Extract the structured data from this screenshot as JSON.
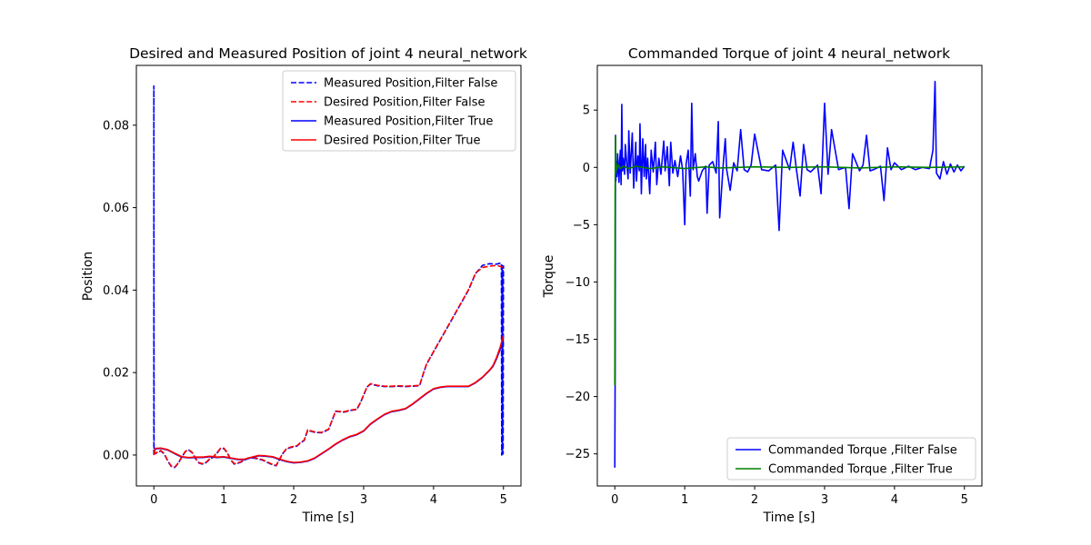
{
  "chart_data": [
    {
      "type": "line",
      "title": "Desired and Measured Position of joint 4 neural_network",
      "xlabel": "Time [s]",
      "ylabel": "Position",
      "xlim": [
        -0.25,
        5.25
      ],
      "ylim": [
        -0.0075,
        0.0945
      ],
      "xticks": [
        0,
        1,
        2,
        3,
        4,
        5
      ],
      "xtick_labels": [
        "0",
        "1",
        "2",
        "3",
        "4",
        "5"
      ],
      "yticks": [
        0.0,
        0.02,
        0.04,
        0.06,
        0.08
      ],
      "ytick_labels": [
        "0.00",
        "0.02",
        "0.04",
        "0.06",
        "0.08"
      ],
      "grid": false,
      "legend_position": "upper right",
      "series": [
        {
          "name": "Measured Position,Filter False",
          "color": "#0000ff",
          "dash": "dashed",
          "x": [
            0,
            0,
            0.003,
            0.006,
            0.04,
            0.1,
            0.15,
            0.2,
            0.25,
            0.3,
            0.35,
            0.4,
            0.45,
            0.5,
            0.55,
            0.6,
            0.65,
            0.7,
            0.75,
            0.8,
            0.85,
            0.9,
            0.95,
            1.0,
            1.05,
            1.1,
            1.15,
            1.2,
            1.25,
            1.3,
            1.35,
            1.4,
            1.45,
            1.5,
            1.55,
            1.6,
            1.65,
            1.7,
            1.75,
            1.8,
            1.85,
            1.9,
            1.95,
            2.0,
            2.05,
            2.1,
            2.15,
            2.2,
            2.3,
            2.4,
            2.5,
            2.6,
            2.7,
            2.75,
            2.8,
            2.9,
            2.95,
            3.0,
            3.05,
            3.1,
            3.2,
            3.3,
            3.4,
            3.5,
            3.6,
            3.7,
            3.8,
            3.85,
            3.9,
            4.0,
            4.1,
            4.2,
            4.3,
            4.4,
            4.5,
            4.55,
            4.6,
            4.7,
            4.8,
            4.9,
            4.97,
            4.975,
            4.98,
            4.985,
            4.99,
            4.995,
            5.0
          ],
          "y": [
            0.0,
            0.0895,
            0.0006,
            0.0003,
            0.0005,
            0.001,
            0.0002,
            -0.0015,
            -0.0028,
            -0.003,
            -0.002,
            -0.0005,
            0.0008,
            0.0012,
            0.0005,
            -0.001,
            -0.002,
            -0.0022,
            -0.0018,
            -0.001,
            -0.0005,
            0.0004,
            0.0015,
            0.0016,
            0.0005,
            -0.0012,
            -0.0022,
            -0.002,
            -0.0017,
            -0.0012,
            -0.0008,
            -0.0007,
            -0.0008,
            -0.001,
            -0.0012,
            -0.0016,
            -0.002,
            -0.0024,
            -0.0026,
            -0.001,
            0.0005,
            0.0015,
            0.0018,
            0.002,
            0.0022,
            0.003,
            0.0035,
            0.006,
            0.0055,
            0.0054,
            0.0062,
            0.0106,
            0.0104,
            0.0105,
            0.0108,
            0.011,
            0.0125,
            0.0145,
            0.0165,
            0.0172,
            0.0168,
            0.0166,
            0.0166,
            0.0167,
            0.0166,
            0.0167,
            0.0168,
            0.0195,
            0.022,
            0.025,
            0.028,
            0.031,
            0.034,
            0.037,
            0.04,
            0.042,
            0.044,
            0.046,
            0.0464,
            0.0463,
            0.0466,
            0.0,
            0.046,
            0.0,
            0.045,
            0.0003,
            0.046
          ]
        },
        {
          "name": "Desired Position,Filter False",
          "color": "#ff0000",
          "dash": "dashed",
          "x": [
            0,
            0.003,
            0.006,
            0.04,
            0.1,
            0.15,
            0.2,
            0.25,
            0.3,
            0.35,
            0.4,
            0.45,
            0.5,
            0.55,
            0.6,
            0.65,
            0.7,
            0.75,
            0.8,
            0.85,
            0.9,
            0.95,
            1.0,
            1.05,
            1.1,
            1.15,
            1.2,
            1.25,
            1.3,
            1.35,
            1.4,
            1.45,
            1.5,
            1.55,
            1.6,
            1.65,
            1.7,
            1.75,
            1.8,
            1.85,
            1.9,
            1.95,
            2.0,
            2.05,
            2.1,
            2.15,
            2.2,
            2.3,
            2.4,
            2.5,
            2.6,
            2.7,
            2.75,
            2.8,
            2.9,
            2.95,
            3.0,
            3.05,
            3.1,
            3.2,
            3.3,
            3.4,
            3.5,
            3.6,
            3.7,
            3.8,
            3.85,
            3.9,
            4.0,
            4.1,
            4.2,
            4.3,
            4.4,
            4.5,
            4.55,
            4.6,
            4.7,
            4.8,
            4.9,
            5.0
          ],
          "y": [
            0.0,
            0.0003,
            0.0004,
            0.0006,
            0.0011,
            0.0003,
            -0.0014,
            -0.0027,
            -0.0029,
            -0.0019,
            -0.0004,
            0.0009,
            0.0013,
            0.0006,
            -0.0009,
            -0.0019,
            -0.0021,
            -0.0017,
            -0.0009,
            -0.0004,
            0.0005,
            0.0016,
            0.0017,
            0.0006,
            -0.0011,
            -0.0021,
            -0.0019,
            -0.0016,
            -0.0011,
            -0.0007,
            -0.0006,
            -0.0007,
            -0.0009,
            -0.0011,
            -0.0015,
            -0.0019,
            -0.0023,
            -0.0025,
            -0.0009,
            0.0006,
            0.0016,
            0.0019,
            0.0021,
            0.0023,
            0.0031,
            0.0036,
            0.0061,
            0.0056,
            0.0055,
            0.0063,
            0.0107,
            0.0105,
            0.0106,
            0.0109,
            0.0111,
            0.0126,
            0.0146,
            0.0166,
            0.0173,
            0.0169,
            0.0167,
            0.0167,
            0.0168,
            0.0167,
            0.0168,
            0.0169,
            0.0196,
            0.0221,
            0.0251,
            0.0281,
            0.0311,
            0.0341,
            0.0371,
            0.0401,
            0.0421,
            0.0441,
            0.0455,
            0.0458,
            0.046,
            0.0455
          ]
        },
        {
          "name": "Measured Position,Filter True",
          "color": "#0000ff",
          "dash": "solid",
          "x": [
            0,
            0.02,
            0.1,
            0.2,
            0.3,
            0.4,
            0.5,
            0.6,
            0.7,
            0.8,
            0.9,
            1.0,
            1.1,
            1.2,
            1.3,
            1.4,
            1.5,
            1.6,
            1.7,
            1.8,
            1.9,
            2.0,
            2.1,
            2.2,
            2.3,
            2.4,
            2.5,
            2.6,
            2.7,
            2.8,
            2.9,
            3.0,
            3.1,
            3.2,
            3.3,
            3.4,
            3.5,
            3.6,
            3.7,
            3.8,
            3.9,
            4.0,
            4.1,
            4.2,
            4.3,
            4.4,
            4.5,
            4.6,
            4.7,
            4.8,
            4.85,
            4.9,
            4.95,
            5.0
          ],
          "y": [
            0.0,
            0.0015,
            0.0016,
            0.0012,
            0.0003,
            -0.0005,
            -0.0007,
            -0.0006,
            -0.0006,
            -0.0004,
            -0.0006,
            -0.0005,
            -0.0008,
            -0.0011,
            -0.0011,
            -0.0006,
            -0.0002,
            -0.0003,
            -0.0005,
            -0.0011,
            -0.0016,
            -0.0019,
            -0.0018,
            -0.0015,
            -0.0008,
            0.0003,
            0.0014,
            0.0026,
            0.0036,
            0.0044,
            0.0049,
            0.0058,
            0.0075,
            0.0087,
            0.0098,
            0.0105,
            0.0108,
            0.0112,
            0.0123,
            0.0136,
            0.0149,
            0.016,
            0.0164,
            0.0166,
            0.0166,
            0.0166,
            0.0166,
            0.0175,
            0.0188,
            0.0205,
            0.0215,
            0.0233,
            0.0255,
            0.028
          ]
        },
        {
          "name": "Desired Position,Filter True",
          "color": "#ff0000",
          "dash": "solid",
          "x": [
            0,
            0.02,
            0.1,
            0.2,
            0.3,
            0.4,
            0.5,
            0.6,
            0.7,
            0.8,
            0.9,
            1.0,
            1.1,
            1.2,
            1.3,
            1.4,
            1.5,
            1.6,
            1.7,
            1.8,
            1.9,
            2.0,
            2.1,
            2.2,
            2.3,
            2.4,
            2.5,
            2.6,
            2.7,
            2.8,
            2.9,
            3.0,
            3.1,
            3.2,
            3.3,
            3.4,
            3.5,
            3.6,
            3.7,
            3.8,
            3.9,
            4.0,
            4.1,
            4.2,
            4.3,
            4.4,
            4.5,
            4.6,
            4.7,
            4.8,
            4.85,
            4.9,
            4.95,
            5.0
          ],
          "y": [
            0.0,
            0.0016,
            0.0017,
            0.0013,
            0.0004,
            -0.0004,
            -0.0006,
            -0.0005,
            -0.0005,
            -0.0003,
            -0.0005,
            -0.0004,
            -0.0007,
            -0.001,
            -0.001,
            -0.0005,
            -0.0001,
            -0.0002,
            -0.0004,
            -0.001,
            -0.0015,
            -0.0018,
            -0.0017,
            -0.0014,
            -0.0007,
            0.0004,
            0.0015,
            0.0027,
            0.0037,
            0.0045,
            0.005,
            0.0059,
            0.0076,
            0.0088,
            0.0099,
            0.0106,
            0.0109,
            0.0113,
            0.0124,
            0.0137,
            0.015,
            0.0161,
            0.0165,
            0.0167,
            0.0167,
            0.0167,
            0.0167,
            0.0176,
            0.0189,
            0.0206,
            0.0217,
            0.0236,
            0.026,
            0.029
          ]
        }
      ]
    },
    {
      "type": "line",
      "title": "Commanded Torque of joint 4 neural_network",
      "xlabel": "Time [s]",
      "ylabel": "Torque",
      "xlim": [
        -0.25,
        5.25
      ],
      "ylim": [
        -27.8,
        8.9
      ],
      "xticks": [
        0,
        1,
        2,
        3,
        4,
        5
      ],
      "xtick_labels": [
        "0",
        "1",
        "2",
        "3",
        "4",
        "5"
      ],
      "yticks": [
        -25,
        -20,
        -15,
        -10,
        -5,
        0,
        5
      ],
      "ytick_labels": [
        "−25",
        "−20",
        "−15",
        "−10",
        "−5",
        "0",
        "5"
      ],
      "grid": false,
      "legend_position": "lower right",
      "series": [
        {
          "name": "Commanded Torque ,Filter False",
          "color": "#0000ff",
          "dash": "solid",
          "x": [
            0,
            0.005,
            0.01,
            0.015,
            0.02,
            0.03,
            0.04,
            0.06,
            0.07,
            0.08,
            0.09,
            0.1,
            0.11,
            0.12,
            0.14,
            0.15,
            0.17,
            0.19,
            0.2,
            0.22,
            0.25,
            0.27,
            0.3,
            0.31,
            0.33,
            0.35,
            0.36,
            0.38,
            0.4,
            0.42,
            0.44,
            0.45,
            0.47,
            0.5,
            0.52,
            0.55,
            0.58,
            0.6,
            0.63,
            0.66,
            0.7,
            0.72,
            0.75,
            0.78,
            0.8,
            0.83,
            0.86,
            0.9,
            0.94,
            0.97,
            1.0,
            1.02,
            1.05,
            1.08,
            1.1,
            1.12,
            1.15,
            1.18,
            1.2,
            1.25,
            1.3,
            1.32,
            1.35,
            1.4,
            1.45,
            1.48,
            1.5,
            1.55,
            1.58,
            1.6,
            1.65,
            1.7,
            1.75,
            1.8,
            1.85,
            1.9,
            1.95,
            2.0,
            2.1,
            2.2,
            2.3,
            2.35,
            2.4,
            2.5,
            2.55,
            2.6,
            2.65,
            2.7,
            2.75,
            2.8,
            2.9,
            2.95,
            3.0,
            3.05,
            3.1,
            3.2,
            3.3,
            3.35,
            3.4,
            3.5,
            3.55,
            3.6,
            3.65,
            3.7,
            3.8,
            3.85,
            3.9,
            3.95,
            4.0,
            4.1,
            4.2,
            4.3,
            4.4,
            4.5,
            4.55,
            4.58,
            4.6,
            4.65,
            4.7,
            4.75,
            4.8,
            4.85,
            4.9,
            4.95,
            5.0
          ],
          "y": [
            -26.2,
            -18.0,
            2.8,
            -1.2,
            0.5,
            -0.8,
            1.2,
            -1.3,
            0.6,
            1.5,
            -1.5,
            5.5,
            -0.3,
            0.8,
            -0.6,
            2.0,
            0.4,
            -1.0,
            3.2,
            -0.5,
            3.0,
            -1.8,
            2.2,
            -1.2,
            1.0,
            -0.3,
            3.8,
            -2.3,
            2.5,
            -0.8,
            2.0,
            -1.0,
            0.8,
            -2.3,
            1.5,
            -0.4,
            2.2,
            -1.5,
            0.8,
            -0.6,
            2.3,
            -0.3,
            1.8,
            -1.6,
            2.2,
            -0.5,
            0.6,
            -0.8,
            1.0,
            -0.2,
            -5.0,
            0.3,
            1.5,
            -2.5,
            5.6,
            -0.2,
            1.2,
            -0.8,
            -1.2,
            -0.3,
            0.1,
            -4.0,
            0.2,
            0.5,
            -0.5,
            4.0,
            -4.4,
            0.2,
            2.5,
            -0.2,
            -2.0,
            0.4,
            -0.3,
            3.3,
            -0.2,
            -0.4,
            0.2,
            2.9,
            -0.2,
            -0.3,
            0.2,
            -5.5,
            1.5,
            -0.2,
            2.2,
            -0.3,
            -2.5,
            2.0,
            -0.2,
            -0.4,
            0.2,
            -2.3,
            5.6,
            -0.6,
            3.3,
            -0.2,
            0.0,
            -3.6,
            1.2,
            -0.3,
            0.2,
            2.8,
            -0.3,
            -0.2,
            0.1,
            -2.9,
            1.7,
            -0.2,
            0.4,
            -0.2,
            0.1,
            -0.2,
            0.0,
            -0.1,
            1.5,
            7.5,
            -0.5,
            -1.0,
            0.5,
            -0.6,
            0.3,
            -0.4,
            0.2,
            -0.3,
            0.1
          ]
        },
        {
          "name": "Commanded Torque ,Filter True",
          "color": "#008000",
          "dash": "solid",
          "x": [
            0,
            0.005,
            0.01,
            0.015,
            0.02,
            0.03,
            0.05,
            0.08,
            0.12,
            0.2,
            0.3,
            0.5,
            0.7,
            1.0,
            1.3,
            1.5,
            2.0,
            2.5,
            3.0,
            3.5,
            4.0,
            4.5,
            5.0
          ],
          "y": [
            -19.0,
            -2.0,
            2.7,
            -0.5,
            0.4,
            -0.2,
            0.2,
            -0.1,
            0.1,
            -0.1,
            0.1,
            -0.1,
            0.05,
            -0.1,
            0.05,
            -0.05,
            0.05,
            0.0,
            0.05,
            -0.05,
            0.05,
            0.0,
            0.05
          ]
        }
      ]
    }
  ]
}
